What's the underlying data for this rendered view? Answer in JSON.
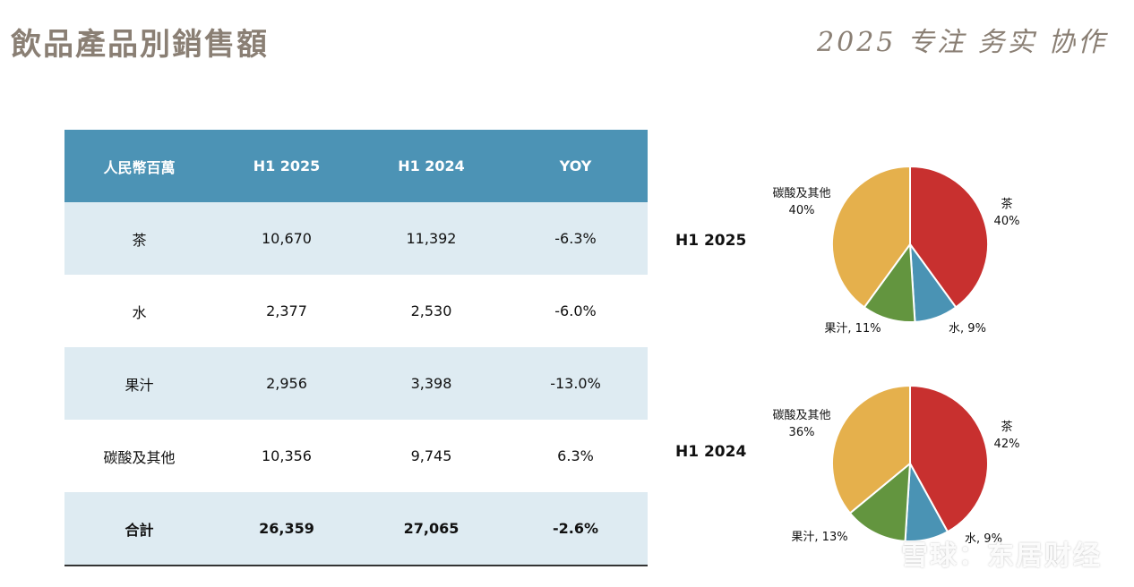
{
  "page": {
    "title": "飲品產品別銷售額",
    "slogan": "2025 专注 务实 协作",
    "watermark": "雪球：东居财经"
  },
  "table": {
    "headers": [
      "人民幣百萬",
      "H1 2025",
      "H1 2024",
      "YOY"
    ],
    "rows": [
      [
        "茶",
        "10,670",
        "11,392",
        "-6.3%"
      ],
      [
        "水",
        "2,377",
        "2,530",
        "-6.0%"
      ],
      [
        "果汁",
        "2,956",
        "3,398",
        "-13.0%"
      ],
      [
        "碳酸及其他",
        "10,356",
        "9,745",
        "6.3%"
      ]
    ],
    "total": [
      "合計",
      "26,359",
      "27,065",
      "-2.6%"
    ]
  },
  "chart_data": [
    {
      "type": "pie",
      "title": "H1 2025",
      "categories": [
        "茶",
        "水",
        "果汁",
        "碳酸及其他"
      ],
      "values": [
        40,
        9,
        11,
        40
      ],
      "labels": [
        "茶\n40%",
        "水, 9%",
        "果汁, 11%",
        "碳酸及其他\n40%"
      ],
      "colors": [
        "#c8302f",
        "#4a93b4",
        "#63953f",
        "#e5b04c"
      ]
    },
    {
      "type": "pie",
      "title": "H1 2024",
      "categories": [
        "茶",
        "水",
        "果汁",
        "碳酸及其他"
      ],
      "values": [
        42,
        9,
        13,
        36
      ],
      "labels": [
        "茶\n42%",
        "水, 9%",
        "果汁, 13%",
        "碳酸及其他\n36%"
      ],
      "colors": [
        "#c8302f",
        "#4a93b4",
        "#63953f",
        "#e5b04c"
      ]
    }
  ]
}
